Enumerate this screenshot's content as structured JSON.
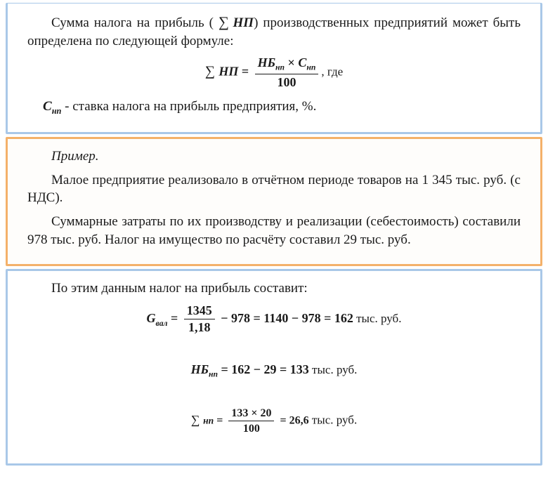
{
  "box1": {
    "p1_a": "Сумма налога на прибыль (",
    "p1_sigma": "∑",
    "p1_np": "НП",
    "p1_b": ") производственных предприятий может быть определена по следующей формуле:",
    "formula": {
      "sigma": "∑",
      "lhs": "НП",
      "num_a": "НБ",
      "num_a_sub": "нп",
      "times": "×",
      "num_b": "С",
      "num_b_sub": "нп",
      "den": "100",
      "tail": ", где"
    },
    "def_sym": "С",
    "def_sub": "нп",
    "def_text": " - ставка налога на прибыль предприятия, %."
  },
  "box2": {
    "p1": "Пример.",
    "p2": "Малое предприятие реализовало в отчётном периоде товаров на 1 345 тыс. руб. (с НДС).",
    "p3": "Суммарные затраты по их производству и реализации (себестоимость) составили 978 тыс. руб. Налог на имущество по расчёту составил 29 тыс. руб."
  },
  "box3": {
    "p1": "По этим данным налог на прибыль составит:",
    "f1": {
      "lhs": "G",
      "lhs_sub": "вал",
      "num": "1345",
      "den": "1,18",
      "mid1": "− 978 = 1140 − 978 = 162",
      "unit": " тыс. руб."
    },
    "f2": {
      "lhs": "НБ",
      "lhs_sub": "нп",
      "rhs": "= 162 − 29 = 133",
      "unit": " тыс. руб."
    },
    "f3": {
      "sigma": "∑",
      "lhs": "нп",
      "num": "133 × 20",
      "den": "100",
      "rhs": "= 26,6",
      "unit": " тыс. руб."
    }
  }
}
